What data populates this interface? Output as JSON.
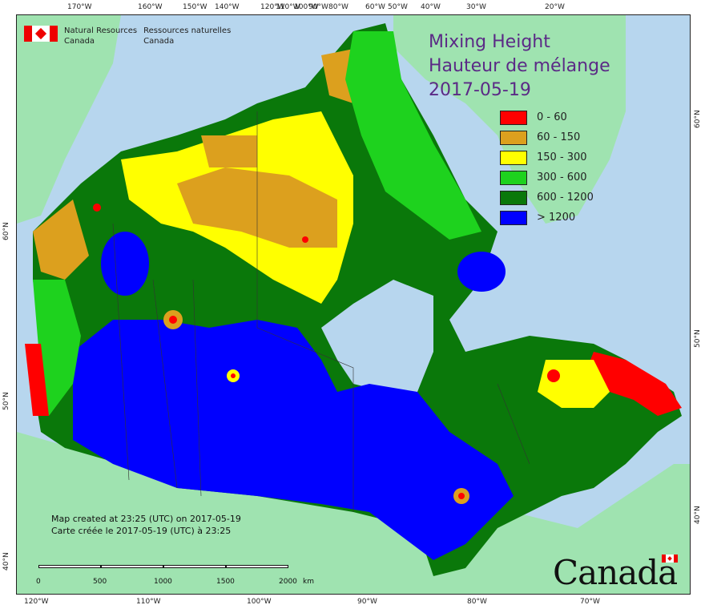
{
  "map_title": {
    "line1": "Mixing Height",
    "line2": "Hauteur de mélange",
    "date": "2017-05-19"
  },
  "organization": {
    "en_line1": "Natural Resources",
    "en_line2": "Canada",
    "fr_line1": "Ressources naturelles",
    "fr_line2": "Canada"
  },
  "legend": [
    {
      "label": "0 - 60",
      "color": "#ff0000"
    },
    {
      "label": "60 - 150",
      "color": "#dca01e"
    },
    {
      "label": "150 - 300",
      "color": "#ffff00"
    },
    {
      "label": "300 - 600",
      "color": "#1ed21e"
    },
    {
      "label": "600 - 1200",
      "color": "#0a780a"
    },
    {
      "label": "> 1200",
      "color": "#0000ff"
    }
  ],
  "credits": {
    "en": "Map created at 23:25 (UTC) on 2017-05-19",
    "fr": "Carte créée le 2017-05-19 (UTC) à 23:25"
  },
  "scalebar": {
    "labels": [
      "0",
      "500",
      "1000",
      "1500",
      "2000"
    ],
    "unit": "km"
  },
  "wordmark": "Canada",
  "ticks": {
    "top": [
      "170°W",
      "160°W",
      "150°W",
      "140°W",
      "120°W",
      "110°W",
      "100°W",
      "90°W",
      "80°W",
      "60°W",
      "50°W",
      "40°W",
      "30°W",
      "20°W"
    ],
    "bottom": [
      "120°W",
      "110°W",
      "100°W",
      "90°W",
      "80°W",
      "70°W"
    ],
    "left": [
      "60°N",
      "50°N",
      "40°N"
    ],
    "right": [
      "60°N",
      "50°N",
      "40°N"
    ]
  },
  "colors": {
    "ocean": "#b7d6ee",
    "land_other": "#9fe3b0",
    "title_text": "#5b2a86"
  }
}
